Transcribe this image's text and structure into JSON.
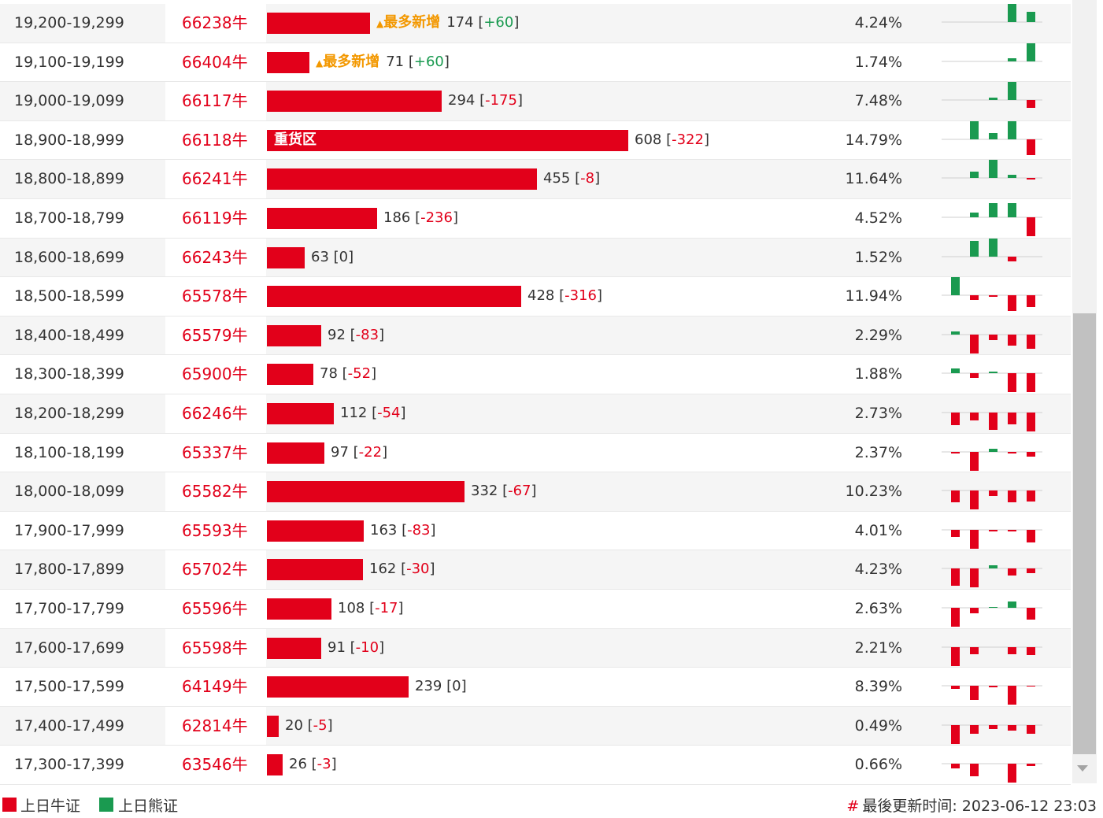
{
  "colors": {
    "bull": "#e2001a",
    "bear": "#1a9a50",
    "tag": "#f39800"
  },
  "tag_label": "最多新增",
  "heavy_label": "重货区",
  "rows": [
    {
      "range": "19,200-19,299",
      "code": "66238牛",
      "count": 174,
      "change": "+60",
      "pct": "4.24%",
      "tag": true,
      "spark": [
        0,
        0,
        0,
        0,
        24,
        13
      ]
    },
    {
      "range": "19,100-19,199",
      "code": "66404牛",
      "count": 71,
      "change": "+60",
      "pct": "1.74%",
      "tag": true,
      "spark": [
        0,
        0,
        0,
        0,
        4,
        24
      ]
    },
    {
      "range": "19,000-19,099",
      "code": "66117牛",
      "count": 294,
      "change": "-175",
      "pct": "7.48%",
      "spark": [
        0,
        0,
        0,
        3,
        24,
        -10
      ]
    },
    {
      "range": "18,900-18,999",
      "code": "66118牛",
      "count": 608,
      "change": "-322",
      "pct": "14.79%",
      "heavy": true,
      "spark": [
        0,
        24,
        8,
        24,
        -20
      ]
    },
    {
      "range": "18,800-18,899",
      "code": "66241牛",
      "count": 455,
      "change": "-8",
      "pct": "11.64%",
      "spark": [
        0,
        8,
        24,
        4,
        -2
      ]
    },
    {
      "range": "18,700-18,799",
      "code": "66119牛",
      "count": 186,
      "change": "-236",
      "pct": "4.52%",
      "spark": [
        0,
        6,
        18,
        18,
        -24
      ]
    },
    {
      "range": "18,600-18,699",
      "code": "66243牛",
      "count": 63,
      "change": "0",
      "pct": "1.52%",
      "spark": [
        0,
        20,
        24,
        -6
      ]
    },
    {
      "range": "18,500-18,599",
      "code": "65578牛",
      "count": 428,
      "change": "-316",
      "pct": "11.94%",
      "spark": [
        24,
        -6,
        -2,
        -20,
        -15
      ]
    },
    {
      "range": "18,400-18,499",
      "code": "65579牛",
      "count": 92,
      "change": "-83",
      "pct": "2.29%",
      "spark": [
        4,
        -24,
        -7,
        -14,
        -18
      ]
    },
    {
      "range": "18,300-18,399",
      "code": "65900牛",
      "count": 78,
      "change": "-52",
      "pct": "1.88%",
      "spark": [
        6,
        -6,
        2,
        -24,
        -24
      ]
    },
    {
      "range": "18,200-18,299",
      "code": "66246牛",
      "count": 112,
      "change": "-54",
      "pct": "2.73%",
      "spark": [
        -16,
        -10,
        -22,
        -15,
        -24
      ]
    },
    {
      "range": "18,100-18,199",
      "code": "65337牛",
      "count": 97,
      "change": "-22",
      "pct": "2.37%",
      "spark": [
        -2,
        -24,
        4,
        -2,
        -6
      ]
    },
    {
      "range": "18,000-18,099",
      "code": "65582牛",
      "count": 332,
      "change": "-67",
      "pct": "10.23%",
      "spark": [
        -15,
        -24,
        -7,
        -15,
        -14
      ]
    },
    {
      "range": "17,900-17,999",
      "code": "65593牛",
      "count": 163,
      "change": "-83",
      "pct": "4.01%",
      "spark": [
        -9,
        -24,
        -2,
        -2,
        -16
      ]
    },
    {
      "range": "17,800-17,899",
      "code": "65702牛",
      "count": 162,
      "change": "-30",
      "pct": "4.23%",
      "spark": [
        -22,
        -24,
        4,
        -9,
        -6
      ]
    },
    {
      "range": "17,700-17,799",
      "code": "65596牛",
      "count": 108,
      "change": "-17",
      "pct": "2.63%",
      "spark": [
        -24,
        -7,
        1,
        8,
        -15
      ]
    },
    {
      "range": "17,600-17,699",
      "code": "65598牛",
      "count": 91,
      "change": "-10",
      "pct": "2.21%",
      "spark": [
        -24,
        -9,
        0,
        -9,
        -10
      ]
    },
    {
      "range": "17,500-17,599",
      "code": "64149牛",
      "count": 239,
      "change": "0",
      "pct": "8.39%",
      "spark": [
        -4,
        -18,
        -2,
        -24,
        -1
      ]
    },
    {
      "range": "17,400-17,499",
      "code": "62814牛",
      "count": 20,
      "change": "-5",
      "pct": "0.49%",
      "spark": [
        -24,
        -11,
        -5,
        -7,
        -11
      ]
    },
    {
      "range": "17,300-17,399",
      "code": "63546牛",
      "count": 26,
      "change": "-3",
      "pct": "0.66%",
      "spark": [
        -6,
        -16,
        0,
        -24,
        -3
      ]
    }
  ],
  "legend": {
    "bull": "上日牛证",
    "bear": "上日熊证"
  },
  "updated": {
    "label": "最後更新时间:",
    "time": "2023-06-12 23:03"
  }
}
